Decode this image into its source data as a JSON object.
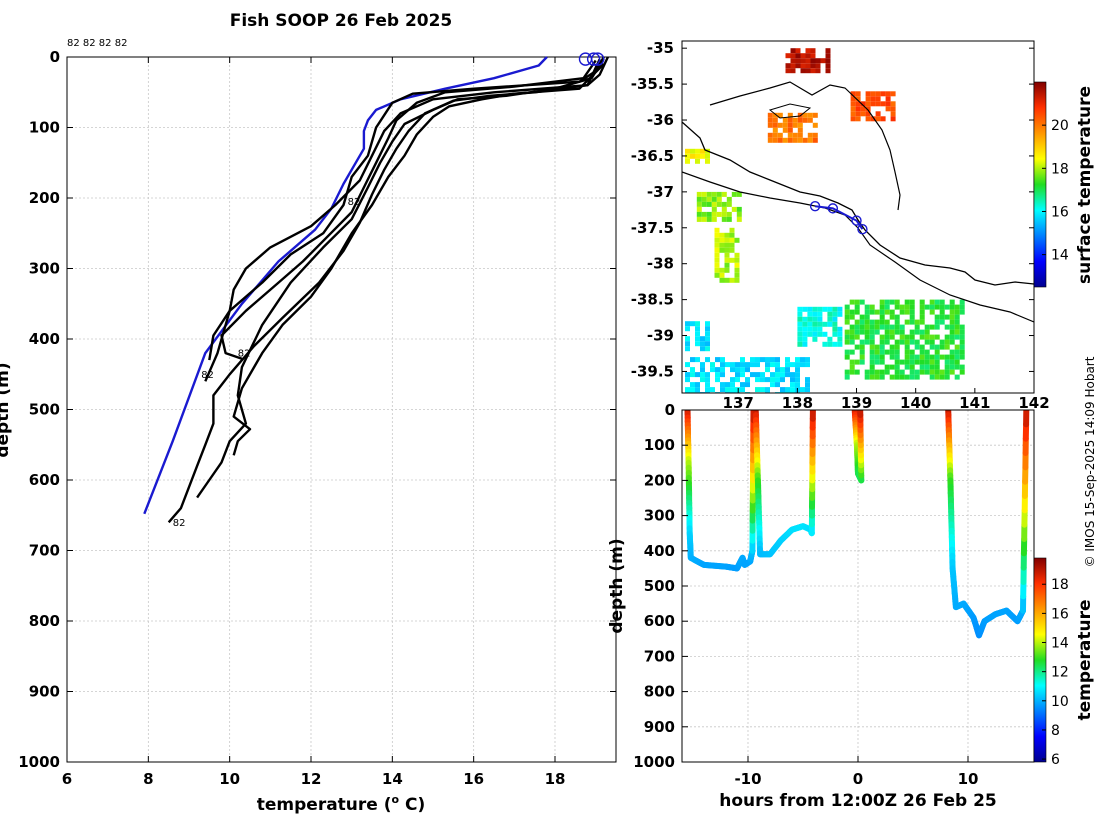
{
  "title": "Fish SOOP 26 Feb 2025",
  "credit": "© IMOS 15-Sep-2025 14:09 Hobart",
  "chart_data": [
    {
      "type": "line",
      "name": "temperature-depth profiles",
      "xlabel_prefix": "temperature (",
      "xlabel_sup": "o",
      "xlabel_suffix": " C)",
      "ylabel": "depth (m)",
      "xlim": [
        6,
        19.5
      ],
      "ylim": [
        1000,
        0
      ],
      "xticks": [
        6,
        8,
        10,
        12,
        14,
        16,
        18
      ],
      "yticks": [
        0,
        100,
        200,
        300,
        400,
        500,
        600,
        700,
        800,
        900,
        1000
      ],
      "top_labels": "82 82 82 82",
      "profile_labels": [
        {
          "text": "82",
          "t": 12.9,
          "d": 210
        },
        {
          "text": "82",
          "t": 10.2,
          "d": 425
        },
        {
          "text": "82",
          "t": 9.3,
          "d": 455
        },
        {
          "text": "82",
          "t": 8.6,
          "d": 665
        }
      ],
      "series": [
        {
          "name": "climatology",
          "color": "#1a1ad0",
          "points": [
            [
              17.8,
              0
            ],
            [
              17.6,
              12
            ],
            [
              16.5,
              30
            ],
            [
              15.3,
              45
            ],
            [
              14.2,
              60
            ],
            [
              13.6,
              75
            ],
            [
              13.4,
              90
            ],
            [
              13.3,
              105
            ],
            [
              13.3,
              130
            ],
            [
              13.1,
              150
            ],
            [
              12.8,
              180
            ],
            [
              12.5,
              215
            ],
            [
              12.1,
              245
            ],
            [
              11.2,
              290
            ],
            [
              10.3,
              350
            ],
            [
              9.4,
              420
            ],
            [
              8.6,
              545
            ],
            [
              7.9,
              648
            ]
          ]
        },
        {
          "name": "profile-1",
          "color": "#000000",
          "points": [
            [
              19.2,
              0
            ],
            [
              19.0,
              20
            ],
            [
              18.6,
              35
            ],
            [
              16.0,
              45
            ],
            [
              14.5,
              52
            ],
            [
              14.0,
              65
            ],
            [
              13.6,
              100
            ],
            [
              13.4,
              140
            ],
            [
              13.0,
              170
            ],
            [
              12.8,
              210
            ],
            [
              12.3,
              250
            ],
            [
              11.5,
              280
            ],
            [
              10.8,
              320
            ],
            [
              10.0,
              360
            ],
            [
              9.7,
              420
            ],
            [
              9.4,
              460
            ]
          ]
        },
        {
          "name": "profile-2",
          "color": "#000000",
          "points": [
            [
              19.3,
              0
            ],
            [
              19.1,
              25
            ],
            [
              18.8,
              40
            ],
            [
              16.5,
              50
            ],
            [
              15.0,
              60
            ],
            [
              14.2,
              80
            ],
            [
              13.8,
              105
            ],
            [
              13.5,
              140
            ],
            [
              13.2,
              175
            ],
            [
              12.6,
              210
            ],
            [
              12.0,
              240
            ],
            [
              11.0,
              270
            ],
            [
              10.4,
              300
            ],
            [
              10.1,
              330
            ],
            [
              10.0,
              360
            ],
            [
              9.6,
              395
            ],
            [
              9.5,
              430
            ]
          ]
        },
        {
          "name": "profile-3",
          "color": "#000000",
          "points": [
            [
              19.0,
              5
            ],
            [
              18.7,
              30
            ],
            [
              17.0,
              42
            ],
            [
              15.3,
              50
            ],
            [
              14.6,
              65
            ],
            [
              14.1,
              90
            ],
            [
              13.9,
              115
            ],
            [
              13.6,
              150
            ],
            [
              13.3,
              185
            ],
            [
              13.0,
              220
            ],
            [
              12.4,
              255
            ],
            [
              11.8,
              290
            ],
            [
              11.2,
              320
            ],
            [
              10.4,
              360
            ],
            [
              9.8,
              395
            ],
            [
              9.9,
              420
            ],
            [
              10.3,
              428
            ]
          ]
        },
        {
          "name": "profile-4",
          "color": "#000000",
          "points": [
            [
              19.2,
              2
            ],
            [
              18.9,
              30
            ],
            [
              18.0,
              45
            ],
            [
              16.8,
              55
            ],
            [
              15.6,
              60
            ],
            [
              15.0,
              75
            ],
            [
              14.3,
              95
            ],
            [
              14.0,
              120
            ],
            [
              13.7,
              150
            ],
            [
              13.4,
              185
            ],
            [
              13.0,
              230
            ],
            [
              12.3,
              270
            ],
            [
              11.5,
              320
            ],
            [
              10.8,
              380
            ],
            [
              10.3,
              440
            ],
            [
              10.2,
              480
            ],
            [
              10.4,
              520
            ],
            [
              10.0,
              545
            ],
            [
              9.8,
              575
            ],
            [
              9.5,
              600
            ],
            [
              9.2,
              625
            ]
          ]
        },
        {
          "name": "profile-5",
          "color": "#000000",
          "points": [
            [
              19.1,
              3
            ],
            [
              18.8,
              40
            ],
            [
              17.5,
              50
            ],
            [
              16.4,
              55
            ],
            [
              15.5,
              62
            ],
            [
              14.8,
              80
            ],
            [
              14.4,
              105
            ],
            [
              14.1,
              130
            ],
            [
              13.8,
              160
            ],
            [
              13.5,
              195
            ],
            [
              13.2,
              235
            ],
            [
              12.8,
              275
            ],
            [
              12.2,
              320
            ],
            [
              11.3,
              370
            ],
            [
              10.6,
              410
            ],
            [
              10.0,
              450
            ],
            [
              9.6,
              480
            ],
            [
              9.6,
              520
            ],
            [
              9.4,
              550
            ],
            [
              9.2,
              580
            ],
            [
              9.0,
              610
            ],
            [
              8.8,
              640
            ],
            [
              8.5,
              660
            ]
          ]
        },
        {
          "name": "profile-6",
          "color": "#000000",
          "points": [
            [
              19.2,
              10
            ],
            [
              18.6,
              45
            ],
            [
              17.0,
              52
            ],
            [
              16.2,
              60
            ],
            [
              15.4,
              70
            ],
            [
              15.0,
              85
            ],
            [
              14.6,
              110
            ],
            [
              14.3,
              140
            ],
            [
              13.9,
              170
            ],
            [
              13.5,
              210
            ],
            [
              13.0,
              250
            ],
            [
              12.5,
              300
            ],
            [
              12.0,
              340
            ],
            [
              11.3,
              380
            ],
            [
              10.8,
              420
            ],
            [
              10.3,
              470
            ],
            [
              10.1,
              510
            ],
            [
              10.5,
              528
            ],
            [
              10.2,
              545
            ],
            [
              10.1,
              565
            ]
          ]
        }
      ]
    },
    {
      "type": "heatmap",
      "name": "surface temperature map",
      "xticks": [
        137,
        138,
        139,
        140,
        141,
        142
      ],
      "xtick_labels": [
        "137",
        "138",
        "139",
        "140",
        "141",
        "142"
      ],
      "yticks": [
        -35,
        -35.5,
        -36,
        -36.5,
        -37,
        -37.5,
        -38,
        -38.5,
        -39,
        -39.5
      ],
      "ytick_labels": [
        "-35",
        "-35.5",
        "-36",
        "-36.5",
        "-37",
        "-37.5",
        "-38",
        "-38.5",
        "-39",
        "-39.5"
      ],
      "lon_range": [
        136.05,
        142.0
      ],
      "lat_range": [
        -39.8,
        -34.9
      ],
      "colorbar_label": "surface temperature",
      "colorbar_range": [
        12.5,
        22
      ],
      "colorbar_ticks": [
        14,
        16,
        18,
        20
      ],
      "patches": [
        {
          "lon": [
            137.8,
            138.5
          ],
          "lat": [
            -35.3,
            -35.0
          ],
          "temp": 21.5
        },
        {
          "lon": [
            138.9,
            139.6
          ],
          "lat": [
            -36.0,
            -35.6
          ],
          "temp": 20.5
        },
        {
          "lon": [
            137.5,
            138.3
          ],
          "lat": [
            -36.3,
            -35.9
          ],
          "temp": 20.0
        },
        {
          "lon": [
            136.1,
            136.5
          ],
          "lat": [
            -36.6,
            -36.4
          ],
          "temp": 18.5
        },
        {
          "lon": [
            136.3,
            137.0
          ],
          "lat": [
            -37.4,
            -37.0
          ],
          "temp": 17.8
        },
        {
          "lon": [
            136.6,
            137.0
          ],
          "lat": [
            -38.2,
            -37.5
          ],
          "temp": 18.0
        },
        {
          "lon": [
            138.8,
            140.8
          ],
          "lat": [
            -39.6,
            -38.5
          ],
          "temp": 17.2
        },
        {
          "lon": [
            136.1,
            138.2
          ],
          "lat": [
            -39.8,
            -39.3
          ],
          "temp": 15.8
        },
        {
          "lon": [
            136.1,
            136.5
          ],
          "lat": [
            -39.2,
            -38.8
          ],
          "temp": 15.8
        },
        {
          "lon": [
            138.0,
            138.7
          ],
          "lat": [
            -39.1,
            -38.6
          ],
          "temp": 16.2
        }
      ],
      "track": [
        [
          138.3,
          -37.2
        ],
        [
          138.6,
          -37.23
        ],
        [
          139.0,
          -37.4
        ],
        [
          139.1,
          -37.52
        ]
      ]
    },
    {
      "type": "scatter",
      "name": "depth time section",
      "xlabel": "hours from 12:00Z 26 Feb 25",
      "ylabel": "depth (m)",
      "xlim": [
        -16,
        16
      ],
      "ylim": [
        1000,
        0
      ],
      "xticks": [
        -10,
        0,
        10
      ],
      "yticks": [
        0,
        100,
        200,
        300,
        400,
        500,
        600,
        700,
        800,
        900,
        1000
      ],
      "colorbar_label": "temperature",
      "colorbar_range": [
        5.8,
        19.8
      ],
      "colorbar_ticks": [
        6,
        8,
        10,
        12,
        14,
        16,
        18
      ],
      "traces": [
        {
          "points": [
            [
              -15.5,
              0
            ],
            [
              -15.4,
              150
            ],
            [
              -15.3,
              350
            ],
            [
              -15.2,
              420
            ],
            [
              -14,
              440
            ],
            [
              -12,
              445
            ],
            [
              -11,
              450
            ],
            [
              -10.5,
              420
            ],
            [
              -10.3,
              440
            ],
            [
              -9.8,
              430
            ],
            [
              -9.6,
              400
            ],
            [
              -9.5,
              0
            ]
          ],
          "temps": [
            19,
            14,
            10.5,
            10,
            9.8,
            9.8,
            9.7,
            9.9,
            9.8,
            9.8,
            10.2,
            19
          ]
        },
        {
          "points": [
            [
              -9.3,
              0
            ],
            [
              -9.1,
              200
            ],
            [
              -8.9,
              410
            ],
            [
              -8,
              410
            ],
            [
              -7,
              370
            ],
            [
              -6,
              340
            ],
            [
              -5,
              330
            ],
            [
              -4.3,
              340
            ],
            [
              -4.2,
              350
            ],
            [
              -4.1,
              0
            ]
          ],
          "temps": [
            19,
            13,
            10.1,
            10.2,
            10.4,
            10.6,
            10.7,
            10.6,
            10.5,
            19
          ]
        },
        {
          "points": [
            [
              -0.3,
              0
            ],
            [
              -0.1,
              100
            ],
            [
              0,
              180
            ],
            [
              0.3,
              200
            ],
            [
              0.2,
              0
            ]
          ],
          "temps": [
            19,
            14,
            12.5,
            12.3,
            19
          ]
        },
        {
          "points": [
            [
              8.2,
              0
            ],
            [
              8.4,
              200
            ],
            [
              8.6,
              450
            ],
            [
              8.9,
              560
            ],
            [
              9.6,
              550
            ],
            [
              10.5,
              590
            ],
            [
              11,
              640
            ],
            [
              11.5,
              600
            ],
            [
              12.5,
              580
            ],
            [
              13.5,
              570
            ],
            [
              14.5,
              600
            ],
            [
              15,
              570
            ],
            [
              15.3,
              0
            ]
          ],
          "temps": [
            19,
            13,
            10.3,
            9.9,
            9.9,
            9.7,
            9.5,
            9.7,
            9.8,
            9.8,
            9.7,
            9.9,
            19
          ]
        }
      ]
    }
  ]
}
